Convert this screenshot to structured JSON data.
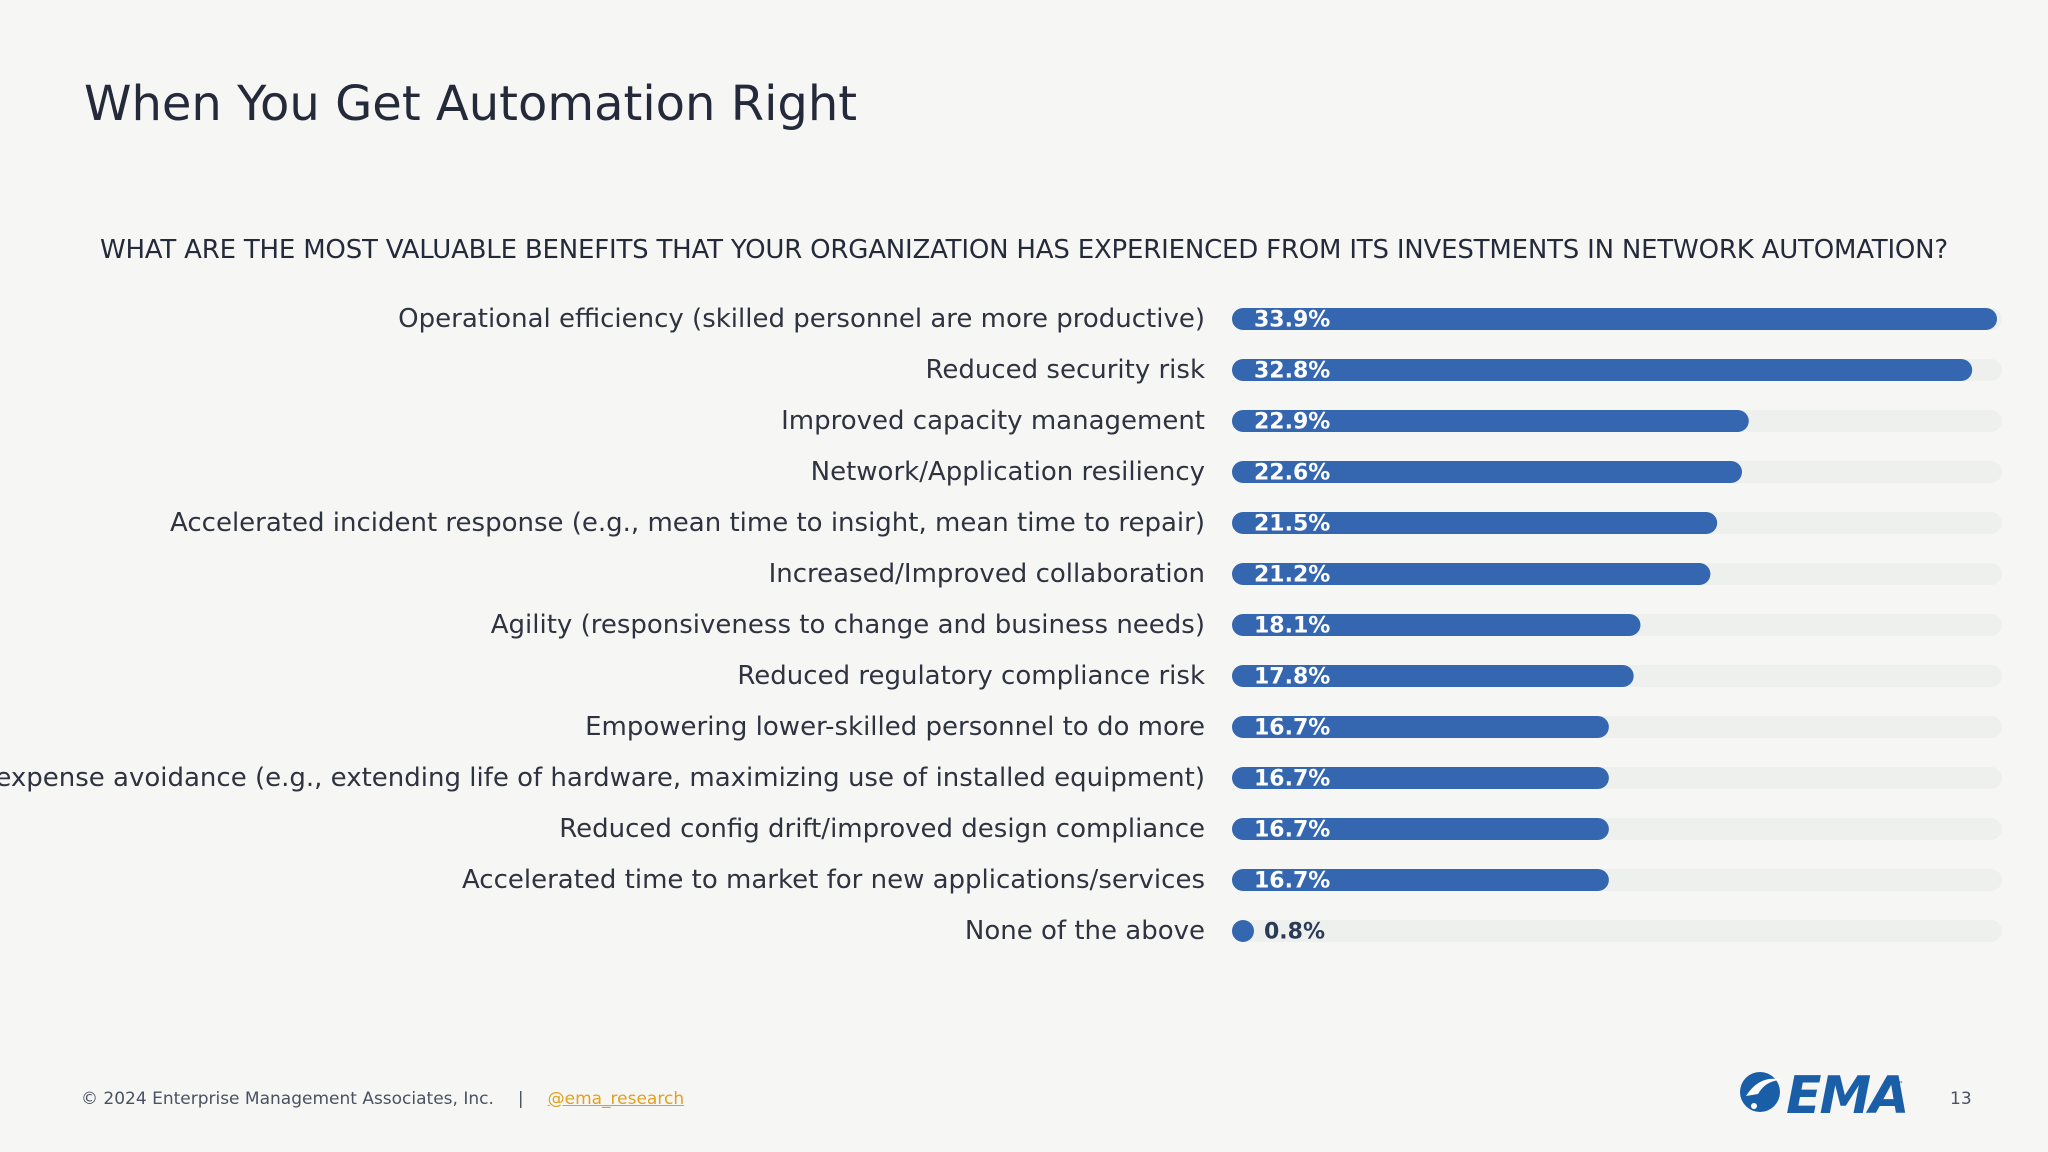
{
  "slide": {
    "title": "When You Get Automation Right",
    "question": "WHAT ARE THE MOST VALUABLE BENEFITS THAT YOUR ORGANIZATION HAS EXPERIENCED FROM ITS INVESTMENTS IN NETWORK AUTOMATION?",
    "page_number": "13"
  },
  "footer": {
    "copyright": "© 2024 Enterprise Management Associates, Inc.",
    "separator": "|",
    "handle": "@ema_research"
  },
  "logo": {
    "text": "EMA",
    "tm": "™"
  },
  "colors": {
    "bar": "#3566b0",
    "track": "#eef0ee",
    "label_inside": "#ffffff",
    "label_outside": "#2b3a55",
    "handle": "#e0a020"
  },
  "chart_data": {
    "type": "bar",
    "orientation": "horizontal",
    "unit": "%",
    "xlim": [
      0,
      33.9
    ],
    "grid": false,
    "legend": false,
    "categories": [
      "Operational efficiency (skilled personnel are more productive)",
      "Reduced security risk",
      "Improved capacity management",
      "Network/Application resiliency",
      "Accelerated incident response (e.g., mean time to insight, mean time to repair)",
      "Increased/Improved collaboration",
      "Agility (responsiveness to change and business needs)",
      "Reduced regulatory compliance risk",
      "Empowering lower-skilled personnel to do more",
      "Capital expense avoidance (e.g., extending life of hardware, maximizing use of installed equipment)",
      "Reduced config drift/improved design compliance",
      "Accelerated time to market for new applications/services",
      "None of the above"
    ],
    "values": [
      33.9,
      32.8,
      22.9,
      22.6,
      21.5,
      21.2,
      18.1,
      17.8,
      16.7,
      16.7,
      16.7,
      16.7,
      0.8
    ],
    "value_labels": [
      "33.9%",
      "32.8%",
      "22.9%",
      "22.6%",
      "21.5%",
      "21.2%",
      "18.1%",
      "17.8%",
      "16.7%",
      "16.7%",
      "16.7%",
      "16.7%",
      "0.8%"
    ]
  }
}
